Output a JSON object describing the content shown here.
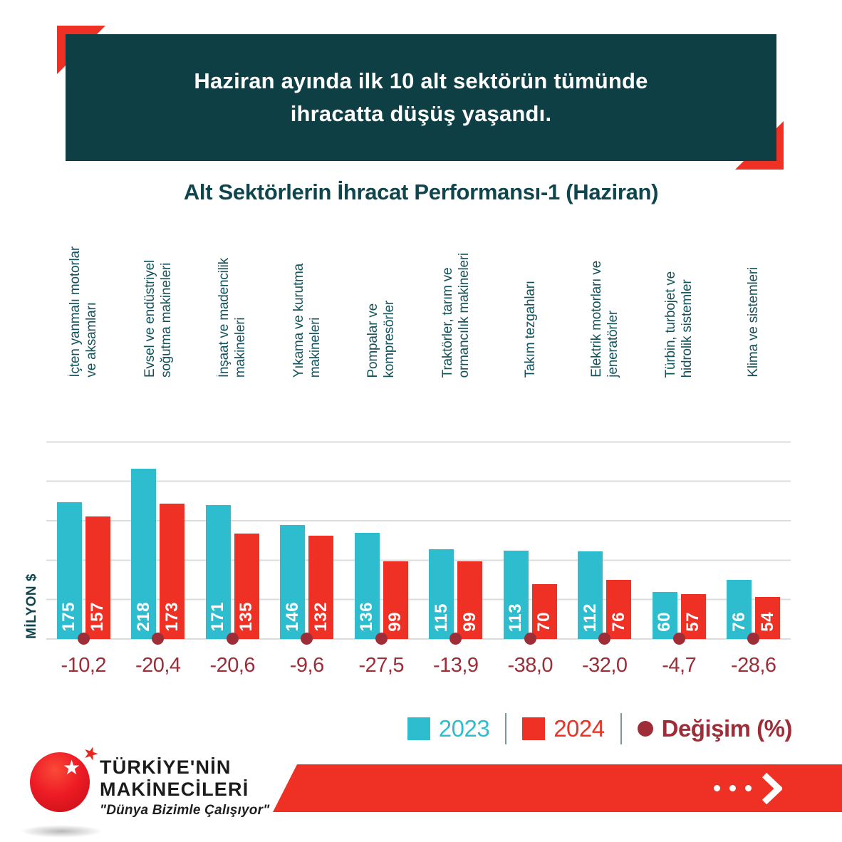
{
  "banner": {
    "heading": "Haziran ayında ilk 10 alt sektörün tümünde\nihracatta düşüş yaşandı."
  },
  "title": "Alt Sektörlerin İhracat Performansı-1 (Haziran)",
  "y_axis_label": "MİLYON $",
  "chart_data": {
    "type": "bar",
    "title": "Alt Sektörlerin İhracat Performansı-1 (Haziran)",
    "ylabel": "MİLYON $",
    "ylim": [
      0,
      300
    ],
    "gridline_step": 50,
    "grid": true,
    "legend_position": "bottom-right",
    "categories": [
      "İçten yanmalı motorlar\nve aksamları",
      "Evsel ve endüstriyel\nsoğutma makineleri",
      "İnşaat ve madencilik\nmakineleri",
      "Yıkama ve kurutma\nmakineleri",
      "Pompalar ve\nkompresörler",
      "Traktörler, tarım ve\normancılık makineleri",
      "Takım tezgahları",
      "Elektrik motorları ve\njeneratörler",
      "Türbin, turbojet ve\nhidrolik sistemler",
      "Klima ve sistemleri"
    ],
    "series": [
      {
        "name": "2023",
        "color": "#2ebdcf",
        "values": [
          175,
          218,
          171,
          146,
          136,
          115,
          113,
          112,
          60,
          76
        ]
      },
      {
        "name": "2024",
        "color": "#ee3124",
        "values": [
          157,
          173,
          135,
          132,
          99,
          99,
          70,
          76,
          57,
          54
        ]
      }
    ],
    "change": {
      "name": "Değişim (%)",
      "color": "#9e2d38",
      "values": [
        -10.2,
        -20.4,
        -20.6,
        -9.6,
        -27.5,
        -13.9,
        -38.0,
        -32.0,
        -4.7,
        -28.6
      ],
      "labels": [
        "-10,2",
        "-20,4",
        "-20,6",
        "-9,6",
        "-27,5",
        "-13,9",
        "-38,0",
        "-32,0",
        "-4,7",
        "-28,6"
      ]
    }
  },
  "legend": {
    "items": [
      {
        "label": "2023",
        "color": "#2ebdcf",
        "swatch": "square",
        "bold": false
      },
      {
        "label": "2024",
        "color": "#ee3124",
        "swatch": "square",
        "bold": false
      },
      {
        "label": "Değişim (%)",
        "color": "#9e2d38",
        "swatch": "dot",
        "bold": true
      }
    ]
  },
  "footer": {
    "brand_line1": "TÜRKİYE'NİN",
    "brand_line2": "MAKİNECİLERİ",
    "tagline": "\"Dünya Bizimle Çalışıyor\""
  },
  "colors": {
    "banner_bg": "#0d3f45",
    "accent_red": "#ee3124",
    "cyan": "#2ebdcf",
    "maroon": "#9e2d38",
    "teal_text": "#0f454d",
    "category_label": "#14525b",
    "gridline": "#dcdcdc"
  }
}
